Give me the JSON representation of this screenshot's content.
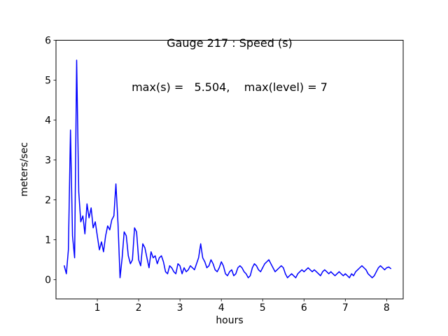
{
  "figure": {
    "title_line1": "Gauge 217 : Speed (s)",
    "title_line2": "max(s) =   5.504,    max(level) = 7",
    "xlabel": "hours",
    "ylabel": "meters/sec"
  },
  "chart_data": {
    "type": "line",
    "title": "Gauge 217 : Speed (s)",
    "subtitle": "max(s) =   5.504,    max(level) = 7",
    "xlabel": "hours",
    "ylabel": "meters/sec",
    "xlim": [
      0,
      8.4
    ],
    "ylim": [
      -0.48,
      6.0
    ],
    "x_ticks": [
      1,
      2,
      3,
      4,
      5,
      6,
      7,
      8
    ],
    "y_ticks": [
      0,
      1,
      2,
      3,
      4,
      5,
      6
    ],
    "grid": false,
    "legend": "none",
    "line_color": "#0000ff",
    "axis_color": "#000000",
    "background_color": "#ffffff",
    "annotations": {
      "max_s": 5.504,
      "max_level": 7
    },
    "series": [
      {
        "name": "speed",
        "x_start": 0.2,
        "x_step": 0.05,
        "values": [
          0.35,
          0.15,
          0.75,
          3.75,
          1.1,
          0.55,
          5.5,
          2.2,
          1.45,
          1.6,
          1.15,
          1.9,
          1.55,
          1.8,
          1.3,
          1.45,
          1.1,
          0.75,
          0.95,
          0.7,
          1.1,
          1.35,
          1.25,
          1.5,
          1.6,
          2.4,
          1.4,
          0.05,
          0.55,
          1.2,
          1.1,
          0.6,
          0.4,
          0.5,
          1.3,
          1.2,
          0.5,
          0.35,
          0.9,
          0.8,
          0.55,
          0.3,
          0.7,
          0.55,
          0.6,
          0.4,
          0.55,
          0.6,
          0.45,
          0.2,
          0.15,
          0.35,
          0.3,
          0.2,
          0.15,
          0.4,
          0.35,
          0.15,
          0.3,
          0.2,
          0.25,
          0.35,
          0.3,
          0.25,
          0.4,
          0.55,
          0.9,
          0.55,
          0.45,
          0.3,
          0.35,
          0.5,
          0.4,
          0.25,
          0.2,
          0.3,
          0.45,
          0.35,
          0.15,
          0.1,
          0.2,
          0.25,
          0.1,
          0.15,
          0.3,
          0.35,
          0.3,
          0.2,
          0.15,
          0.05,
          0.1,
          0.3,
          0.4,
          0.35,
          0.25,
          0.2,
          0.3,
          0.4,
          0.45,
          0.5,
          0.4,
          0.3,
          0.2,
          0.25,
          0.3,
          0.35,
          0.3,
          0.15,
          0.05,
          0.1,
          0.15,
          0.1,
          0.05,
          0.15,
          0.2,
          0.25,
          0.2,
          0.25,
          0.3,
          0.25,
          0.2,
          0.25,
          0.2,
          0.15,
          0.1,
          0.2,
          0.25,
          0.2,
          0.15,
          0.2,
          0.15,
          0.1,
          0.15,
          0.2,
          0.15,
          0.1,
          0.15,
          0.1,
          0.05,
          0.15,
          0.1,
          0.2,
          0.25,
          0.3,
          0.35,
          0.3,
          0.25,
          0.15,
          0.1,
          0.05,
          0.1,
          0.2,
          0.3,
          0.35,
          0.3,
          0.25,
          0.3,
          0.32,
          0.28
        ]
      }
    ]
  }
}
